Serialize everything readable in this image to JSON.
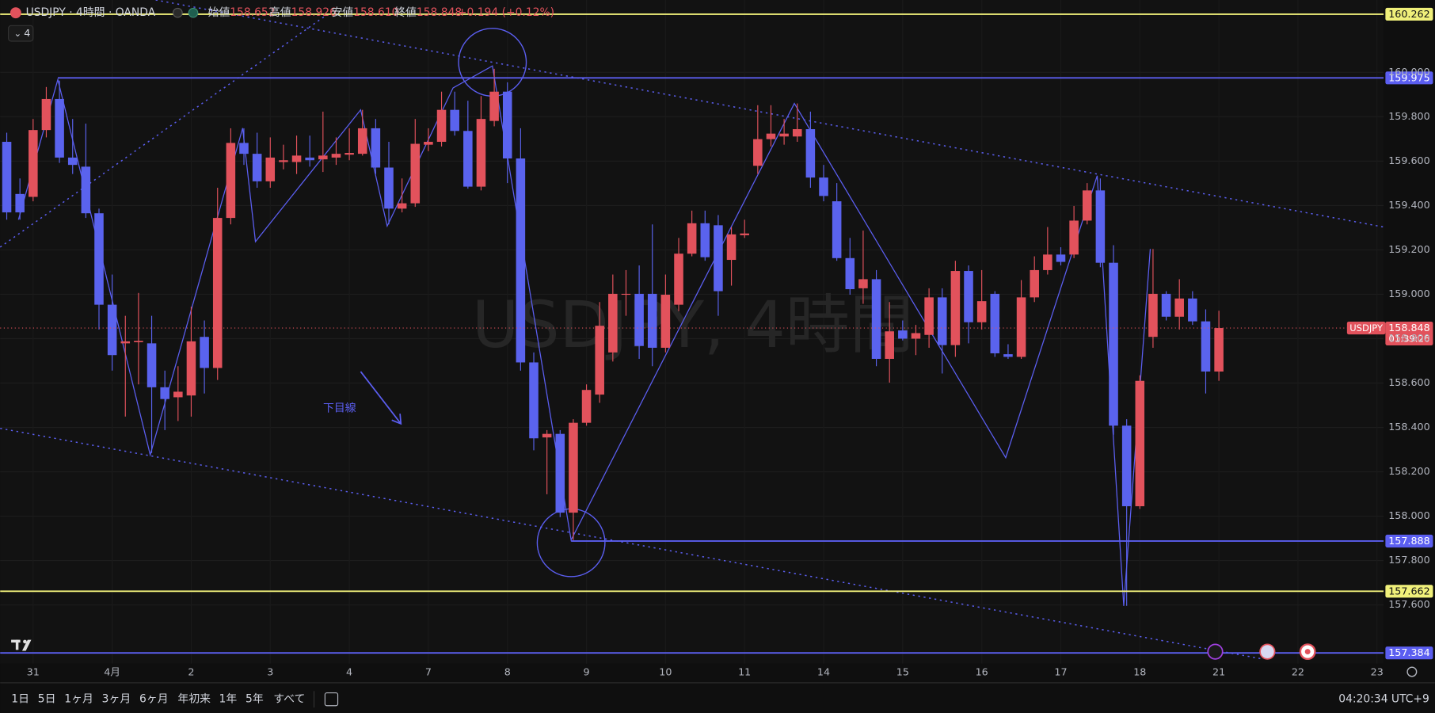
{
  "chart_data": {
    "type": "candlestick",
    "watermark": "USDJPY, 4時間",
    "legend": {
      "symbol": "USDJPY · 4時間 · OANDA",
      "fields": [
        {
          "label": "始値",
          "value": "158.652"
        },
        {
          "label": "高値",
          "value": "158.926"
        },
        {
          "label": "安値",
          "value": "158.610"
        },
        {
          "label": "終値",
          "value": "158.848"
        }
      ],
      "change": "+0.194 (+0.12%)",
      "indicator": "4"
    },
    "categories": [
      null,
      null,
      "31",
      null,
      null,
      null,
      null,
      null,
      "4月",
      null,
      null,
      null,
      null,
      null,
      "2",
      null,
      null,
      null,
      null,
      null,
      "3",
      null,
      null,
      null,
      null,
      null,
      "4",
      null,
      null,
      null,
      null,
      null,
      "7",
      null,
      null,
      null,
      null,
      null,
      "8",
      null,
      null,
      null,
      null,
      null,
      "9",
      null,
      null,
      null,
      null,
      null,
      "10",
      null,
      null,
      null,
      null,
      null,
      "11",
      null,
      null,
      null,
      null,
      null,
      "14",
      null,
      null,
      null,
      null,
      null,
      "15",
      null,
      null,
      null,
      null,
      null,
      "16",
      null,
      null,
      null,
      null,
      null,
      "17",
      null,
      null,
      null,
      null,
      null,
      "18",
      null,
      null,
      null,
      null,
      null,
      "21",
      null,
      null,
      null,
      null,
      null,
      "22",
      null,
      null,
      null,
      null,
      null,
      "23"
    ],
    "open": [
      159.687,
      159.452,
      159.439,
      159.74,
      159.88,
      159.616,
      159.575,
      159.365,
      158.953,
      158.779,
      158.784,
      158.779,
      158.581,
      158.536,
      158.544,
      158.808,
      158.668,
      159.344,
      159.682,
      159.633,
      159.509,
      159.596,
      159.596,
      159.616,
      159.608,
      159.616,
      159.629,
      159.633,
      159.748,
      159.571,
      159.386,
      159.41,
      159.674,
      159.687,
      159.831,
      159.736,
      159.485,
      159.781,
      159.913,
      159.612,
      158.693,
      158.355,
      158.371,
      158.016,
      158.421,
      158.548,
      158.738,
      158.998,
      159.002,
      159.002,
      158.759,
      158.953,
      159.183,
      159.32,
      159.311,
      159.155,
      159.266,
      159.579,
      159.699,
      159.711,
      159.711,
      159.744,
      159.526,
      159.419,
      159.163,
      159.027,
      159.068,
      158.709,
      158.837,
      158.8,
      158.817,
      158.986,
      158.771,
      159.105,
      158.874,
      159.002,
      158.73,
      158.718,
      158.986,
      159.109,
      159.179,
      159.179,
      159.332,
      159.468,
      159.142,
      158.408,
      158.045,
      158.808,
      159.002,
      158.899,
      158.981,
      158.878,
      158.652,
      null,
      null,
      null,
      null,
      null,
      null,
      null,
      null,
      null,
      null,
      null,
      null
    ],
    "high": [
      159.728,
      159.522,
      159.79,
      159.934,
      159.963,
      159.79,
      159.769,
      159.386,
      159.089,
      158.903,
      159.006,
      158.903,
      158.656,
      158.676,
      158.944,
      158.882,
      159.48,
      159.748,
      159.748,
      159.728,
      159.707,
      159.674,
      159.715,
      159.715,
      159.823,
      159.707,
      159.748,
      159.831,
      159.79,
      159.687,
      159.522,
      159.79,
      159.748,
      159.913,
      159.913,
      159.872,
      159.893,
      160.016,
      159.955,
      159.748,
      158.738,
      158.388,
      158.388,
      158.437,
      158.594,
      158.965,
      159.089,
      159.109,
      159.13,
      159.315,
      159.089,
      159.254,
      159.377,
      159.377,
      159.357,
      159.303,
      159.336,
      159.852,
      159.852,
      159.79,
      159.86,
      159.823,
      159.583,
      159.501,
      159.254,
      159.287,
      159.109,
      158.965,
      158.882,
      158.862,
      159.027,
      159.027,
      159.151,
      159.13,
      159.109,
      159.014,
      158.775,
      159.064,
      159.171,
      159.303,
      159.212,
      159.398,
      159.501,
      159.522,
      159.221,
      158.437,
      158.635,
      159.204,
      159.014,
      159.068,
      159.014,
      158.932,
      158.926,
      null,
      null,
      null,
      null,
      null,
      null,
      null,
      null,
      null,
      null,
      null,
      null
    ],
    "low": [
      159.336,
      159.336,
      159.419,
      159.707,
      159.592,
      159.542,
      159.344,
      158.841,
      158.656,
      158.449,
      158.594,
      158.285,
      158.388,
      158.429,
      158.449,
      158.553,
      158.614,
      159.315,
      159.583,
      159.48,
      159.48,
      159.563,
      159.542,
      159.575,
      159.551,
      159.583,
      159.604,
      159.625,
      159.542,
      159.315,
      159.369,
      159.394,
      159.645,
      159.666,
      159.715,
      159.476,
      159.468,
      159.757,
      159.501,
      158.656,
      158.297,
      158.099,
      157.996,
      157.893,
      158.408,
      158.511,
      158.697,
      158.903,
      158.709,
      158.676,
      158.738,
      158.924,
      159.171,
      159.151,
      158.903,
      159.039,
      159.254,
      159.542,
      159.666,
      159.674,
      159.687,
      159.48,
      159.419,
      159.151,
      158.998,
      158.957,
      158.676,
      158.602,
      158.792,
      158.726,
      158.759,
      158.643,
      158.718,
      158.779,
      158.841,
      158.718,
      158.709,
      158.709,
      158.965,
      159.089,
      159.13,
      159.163,
      159.315,
      159.122,
      158.367,
      157.596,
      158.033,
      158.759,
      158.882,
      158.841,
      158.862,
      158.553,
      158.61,
      null,
      null,
      null,
      null,
      null,
      null,
      null,
      null,
      null,
      null,
      null,
      null
    ],
    "close": [
      159.369,
      159.369,
      159.74,
      159.88,
      159.616,
      159.583,
      159.365,
      158.953,
      158.726,
      158.788,
      158.79,
      158.581,
      158.528,
      158.561,
      158.788,
      158.668,
      159.344,
      159.682,
      159.633,
      159.509,
      159.616,
      159.604,
      159.625,
      159.604,
      159.625,
      159.633,
      159.637,
      159.748,
      159.571,
      159.386,
      159.41,
      159.678,
      159.687,
      159.831,
      159.736,
      159.485,
      159.79,
      159.913,
      159.612,
      158.693,
      158.351,
      158.371,
      158.016,
      158.421,
      158.569,
      158.858,
      159.002,
      159.002,
      158.767,
      158.759,
      158.998,
      159.183,
      159.32,
      159.167,
      159.014,
      159.27,
      159.274,
      159.699,
      159.724,
      159.724,
      159.744,
      159.526,
      159.443,
      159.163,
      159.023,
      159.068,
      158.709,
      158.833,
      158.8,
      158.825,
      158.986,
      158.771,
      159.105,
      158.874,
      158.969,
      158.734,
      158.718,
      158.986,
      159.109,
      159.179,
      159.146,
      159.332,
      159.468,
      159.142,
      158.408,
      158.045,
      158.61,
      159.002,
      158.899,
      158.981,
      158.878,
      158.652,
      158.848,
      null,
      null,
      null,
      null,
      null,
      null,
      null,
      null,
      null,
      null,
      null,
      null
    ],
    "up_color": "#e2525c",
    "down_color": "#5a63ee",
    "ylim": [
      157.336,
      160.326
    ],
    "yticks": [
      {
        "value": 157.6,
        "label": "157.600"
      },
      {
        "value": 157.8,
        "label": "157.800"
      },
      {
        "value": 158.0,
        "label": "158.000"
      },
      {
        "value": 158.2,
        "label": "158.200"
      },
      {
        "value": 158.4,
        "label": "158.400"
      },
      {
        "value": 158.6,
        "label": "158.600"
      },
      {
        "value": 158.8,
        "label": "158.800"
      },
      {
        "value": 159.0,
        "label": "159.000"
      },
      {
        "value": 159.2,
        "label": "159.200"
      },
      {
        "value": 159.4,
        "label": "159.400"
      },
      {
        "value": 159.6,
        "label": "159.600"
      },
      {
        "value": 159.8,
        "label": "159.800"
      },
      {
        "value": 160.0,
        "label": "160.000"
      }
    ],
    "grid": true,
    "levels": [
      {
        "value": 160.262,
        "color": "#f0f07a"
      },
      {
        "value": 159.975,
        "color": "#5b5ef0"
      },
      {
        "value": 157.888,
        "color": "#5b5ef0"
      },
      {
        "value": 157.662,
        "color": "#f0f07a"
      },
      {
        "value": 157.384,
        "color": "#5b5ef0"
      }
    ],
    "last": {
      "value": 158.848,
      "symbol": "USDJPY",
      "countdown": "01:39:26",
      "color": "#e2525c"
    },
    "annotation": "下目線"
  },
  "toolbar": {
    "ranges": [
      "1日",
      "5日",
      "1ヶ月",
      "3ヶ月",
      "6ヶ月",
      "年初来",
      "1年",
      "5年",
      "すべて"
    ],
    "clock": "04:20:34 UTC+9"
  }
}
